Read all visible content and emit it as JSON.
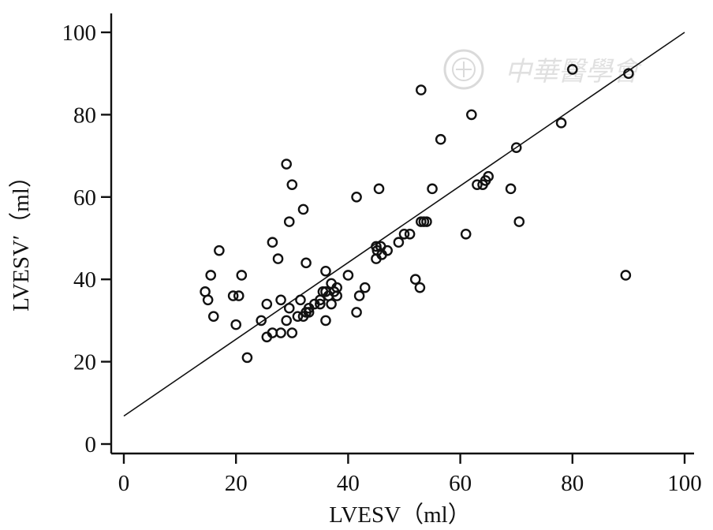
{
  "chart_data": {
    "type": "scatter",
    "title": "",
    "xlabel": "LVESV（ml）",
    "ylabel": "LVESV′（ml）",
    "xlim": [
      0,
      100
    ],
    "ylim": [
      0,
      100
    ],
    "xticks": [
      "0",
      "20",
      "40",
      "60",
      "80",
      "100"
    ],
    "yticks": [
      "0",
      "20",
      "40",
      "60",
      "80",
      "100"
    ],
    "grid": false,
    "legend": "none",
    "regression_line": {
      "x": [
        0,
        100
      ],
      "y": [
        6.8,
        100
      ]
    },
    "points": {
      "x": [
        14.5,
        15,
        15.5,
        16,
        17,
        19.5,
        20,
        20.5,
        21,
        22,
        24.5,
        25.5,
        25.5,
        26.5,
        26.5,
        27.5,
        28,
        28,
        29,
        29,
        29.5,
        29.5,
        30,
        30,
        31,
        31.5,
        32,
        32,
        32.5,
        32.5,
        33,
        33,
        34,
        35,
        35,
        35.5,
        36,
        36,
        36,
        36.5,
        37,
        37,
        37.5,
        38,
        38,
        40,
        41.5,
        41.5,
        42,
        43,
        45,
        45,
        45.2,
        45.5,
        45.8,
        46,
        47,
        49,
        50,
        51,
        52,
        52.8,
        53,
        53,
        53.5,
        54,
        55,
        56.5,
        61,
        62,
        63,
        64,
        64.5,
        65,
        69,
        70,
        70.5,
        78,
        80,
        89.5,
        90
      ],
      "y": [
        37,
        35,
        41,
        31,
        47,
        36,
        29,
        36,
        41,
        21,
        30,
        26,
        34,
        27,
        49,
        45,
        27,
        35,
        30,
        68,
        33,
        54,
        27,
        63,
        31,
        35,
        31,
        57,
        44,
        32,
        33,
        32,
        34,
        34,
        35,
        37,
        30,
        37,
        42,
        36,
        34,
        39,
        37,
        36,
        38,
        41,
        32,
        60,
        36,
        38,
        45,
        48,
        47,
        62,
        48,
        46,
        47,
        49,
        51,
        51,
        40,
        38,
        54,
        86,
        54,
        54,
        62,
        74,
        51,
        80,
        63,
        63,
        64,
        65,
        62,
        72,
        54,
        78,
        91,
        41,
        90
      ]
    }
  }
}
